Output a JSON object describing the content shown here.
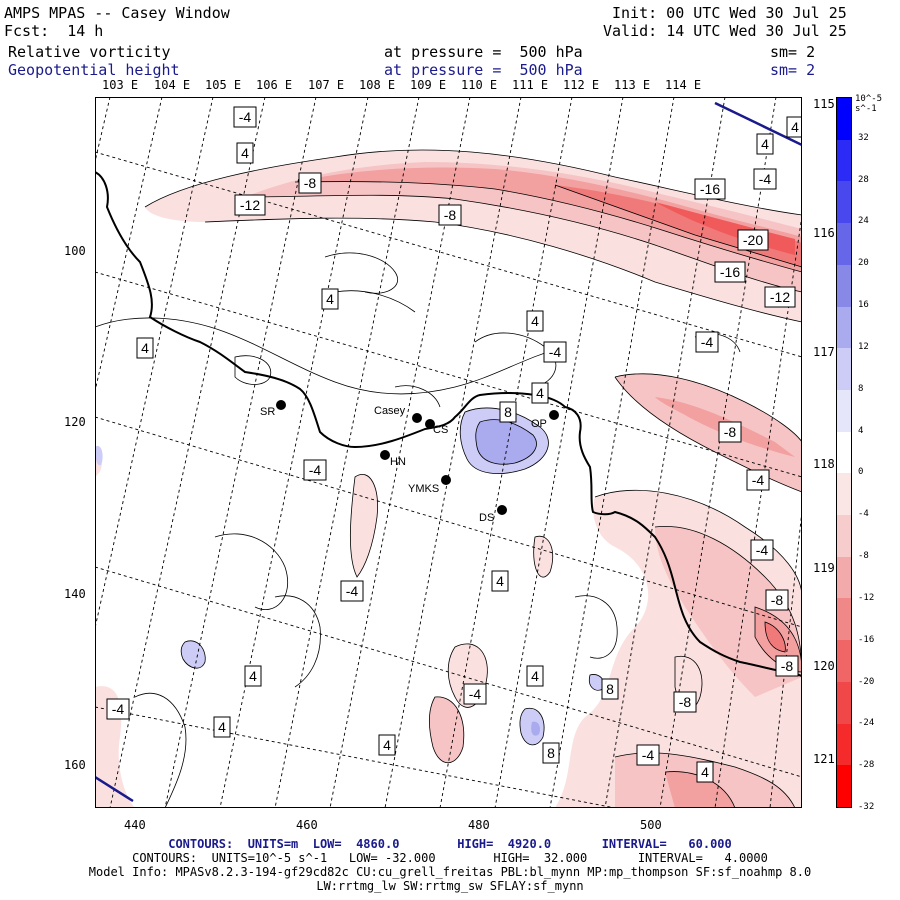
{
  "header": {
    "title": "AMPS MPAS -- Casey Window",
    "fcst": "Fcst:  14 h",
    "init": "Init: 00 UTC Wed 30 Jul 25",
    "valid": "Valid: 14 UTC Wed 30 Jul 25",
    "field1_name": "Relative vorticity",
    "field1_level": "at pressure =  500 hPa",
    "field1_sm": "sm= 2",
    "field2_name": "Geopotential height",
    "field2_level": "at pressure =  500 hPa",
    "field2_sm": "sm= 2"
  },
  "lon_labels_top": [
    "103 E",
    "104 E",
    "105 E",
    "106 E",
    "107 E",
    "108 E",
    "109 E",
    "110 E",
    "111 E",
    "112 E",
    "113 E",
    "114 E"
  ],
  "lon_labels_right": [
    "115 E",
    "116 E",
    "117 E",
    "118 E",
    "119 E",
    "120 E",
    "121 E"
  ],
  "y_ticks": [
    "100",
    "120",
    "140",
    "160"
  ],
  "x_ticks": [
    "440",
    "460",
    "480",
    "500"
  ],
  "colorbar": {
    "unit": "10^-5 s^-1",
    "labels": [
      "32",
      "28",
      "24",
      "20",
      "16",
      "12",
      "8",
      "4",
      "0",
      "-4",
      "-8",
      "-12",
      "-16",
      "-20",
      "-24",
      "-28",
      "-32"
    ],
    "colors": [
      "#0000ff",
      "#2b2bf5",
      "#4848ee",
      "#6666e8",
      "#8888e6",
      "#aaaaee",
      "#ccccf6",
      "#e6e6fb",
      "#ffffff",
      "#fbe6e6",
      "#f6cccc",
      "#f2aaaa",
      "#f08888",
      "#f06666",
      "#f04848",
      "#f52b2b",
      "#ff0000"
    ]
  },
  "stations": [
    {
      "name": "Casey"
    },
    {
      "name": "CS"
    },
    {
      "name": "SR"
    },
    {
      "name": "HN"
    },
    {
      "name": "YMKS"
    },
    {
      "name": "DS"
    },
    {
      "name": "OP"
    }
  ],
  "contour_labels": [
    "-4",
    "4",
    "-8",
    "-12",
    "-8",
    "-16",
    "-4",
    "-20",
    "-16",
    "-12",
    "4",
    "4",
    "4",
    "-4",
    "4",
    "-4",
    "8",
    "4",
    "-8",
    "4",
    "-4",
    "-4",
    "4",
    "-4",
    "-8",
    "4",
    "-4",
    "4",
    "-8",
    "4",
    "4",
    "8",
    "-4",
    "4",
    "8",
    "-4",
    "-8",
    "-4"
  ],
  "footer": {
    "line1": "CONTOURS:  UNITS=m  LOW=  4860.0        HIGH=  4920.0       INTERVAL=   60.000",
    "line2": "CONTOURS:  UNITS=10^-5 s^-1   LOW= -32.000        HIGH=  32.000       INTERVAL=   4.0000",
    "line3": "Model Info: MPASv8.2.3-194-gf29cd82c CU:cu_grell_freitas PBL:bl_mynn MP:mp_thompson SF:sf_noahmp 8.0",
    "line4": "LW:rrtmg_lw SW:rrtmg_sw SFLAY:sf_mynn"
  }
}
